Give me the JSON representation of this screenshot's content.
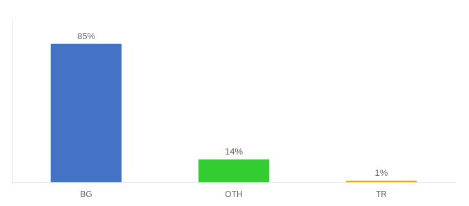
{
  "chart_data": {
    "type": "bar",
    "categories": [
      "BG",
      "OTH",
      "TR"
    ],
    "values": [
      85,
      14,
      1
    ],
    "value_labels": [
      "85%",
      "14%",
      "1%"
    ],
    "colors": [
      "#4472c4",
      "#33cc33",
      "#f0a500"
    ],
    "ylim": [
      0,
      100
    ],
    "data_labels": true,
    "tick_labels": "x",
    "grid": false
  }
}
